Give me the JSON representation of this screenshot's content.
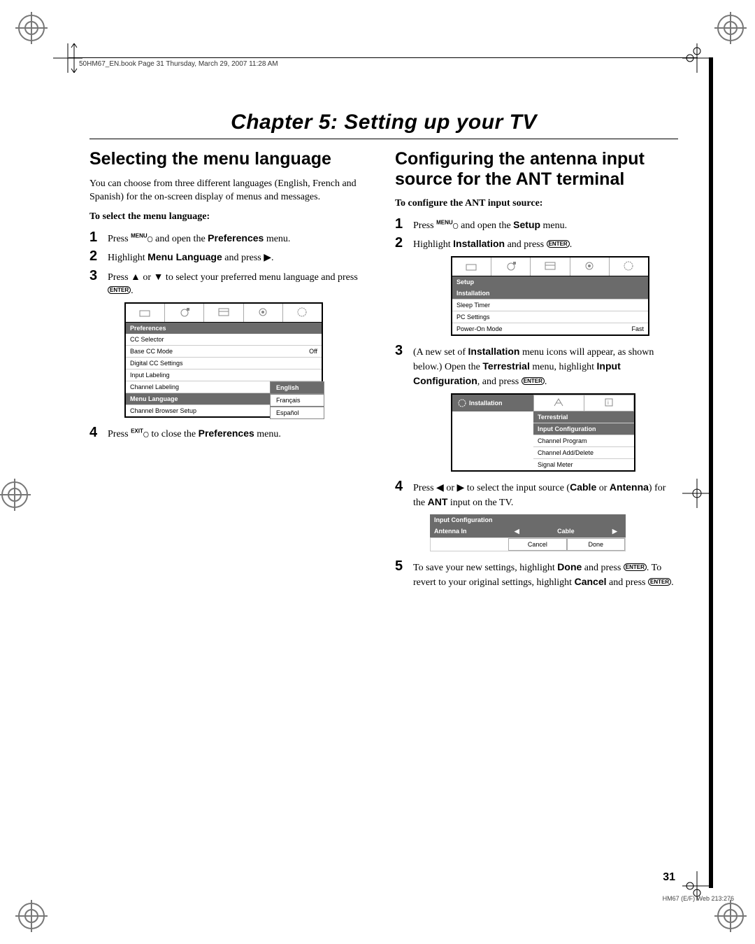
{
  "page_header": "50HM67_EN.book  Page 31  Thursday, March 29, 2007  11:28 AM",
  "chapter_title": "Chapter 5: Setting up your TV",
  "left": {
    "section_title": "Selecting the menu language",
    "intro": "You can choose from three different languages (English, French and Spanish) for the on-screen display of menus and messages.",
    "subhead": "To select the menu language:",
    "steps": {
      "s1a": "Press ",
      "s1b": " and open the ",
      "s1c": "Preferences",
      "s1d": " menu.",
      "s2a": "Highlight ",
      "s2b": "Menu Language",
      "s2c": " and press ▶.",
      "s3a": "Press ▲ or ▼ to select your preferred menu language and press ",
      "s4a": "Press ",
      "s4b": " to close the ",
      "s4c": "Preferences",
      "s4d": " menu."
    },
    "osd": {
      "title": "Preferences",
      "rows": [
        {
          "label": "CC Selector",
          "val": ""
        },
        {
          "label": "Base CC Mode",
          "val": "Off"
        },
        {
          "label": "Digital CC Settings",
          "val": ""
        },
        {
          "label": "Input Labeling",
          "val": ""
        },
        {
          "label": "Channel Labeling",
          "val": ""
        },
        {
          "label": "Menu Language",
          "val": "English",
          "dark": true
        },
        {
          "label": "Channel Browser Setup",
          "val": ""
        }
      ],
      "flyout": [
        "English",
        "Français",
        "Español"
      ]
    }
  },
  "right": {
    "section_title": "Configuring the antenna input source for the ANT terminal",
    "subhead": "To configure the ANT input source:",
    "steps": {
      "s1a": "Press ",
      "s1b": " and open the ",
      "s1c": "Setup",
      "s1d": " menu.",
      "s2a": "Highlight ",
      "s2b": "Installation",
      "s2c": " and press ",
      "s3a": "(A new set of ",
      "s3b": "Installation",
      "s3c": " menu icons will appear, as shown below.) Open the ",
      "s3d": "Terrestrial",
      "s3e": " menu, highlight ",
      "s3f": "Input Configuration",
      "s3g": ", and press ",
      "s4a": "Press ◀ or ▶ to select the input source (",
      "s4b": "Cable",
      "s4c": " or ",
      "s4d": "Antenna",
      "s4e": ") for the ",
      "s4f": "ANT",
      "s4g": " input on the TV.",
      "s5a": "To save your new settings, highlight ",
      "s5b": "Done",
      "s5c": " and press ",
      "s5d": ". To revert to your original settings, highlight ",
      "s5e": "Cancel",
      "s5f": " and press "
    },
    "osd_setup": {
      "title": "Setup",
      "rows": [
        {
          "label": "Installation",
          "val": "",
          "dark": true
        },
        {
          "label": "Sleep Timer",
          "val": ""
        },
        {
          "label": "PC Settings",
          "val": ""
        },
        {
          "label": "Power-On Mode",
          "val": "Fast"
        }
      ]
    },
    "osd_install": {
      "tab": "Installation",
      "rows": [
        "Terrestrial",
        "Input Configuration",
        "Channel Program",
        "Channel Add/Delete",
        "Signal Meter"
      ]
    },
    "osd_input": {
      "title": "Input Configuration",
      "left_label": "Antenna In",
      "value": "Cable",
      "cancel": "Cancel",
      "done": "Done"
    }
  },
  "key_menu": "MENU",
  "key_exit": "EXIT",
  "key_enter": "ENTER",
  "page_num": "31",
  "footer": "HM67 (E/F) Web 213:276"
}
